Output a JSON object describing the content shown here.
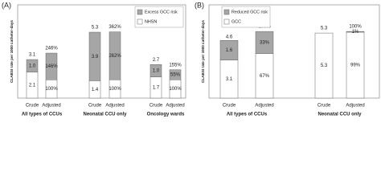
{
  "chart_data": [
    {
      "type": "bar",
      "stacked": true,
      "panel_label": "(A)",
      "ylabel": "CLABSI rate per 1000 catheter-days",
      "groups": [
        "All types of CCUs",
        "Neonatal CCU only",
        "Oncology wards"
      ],
      "categories": [
        "Crude",
        "Adjusted",
        "Crude",
        "Adjusted",
        "Crude",
        "Adjusted"
      ],
      "bar_axis": [
        "y",
        "y2",
        "y",
        "y2",
        "y",
        "y2"
      ],
      "series": [
        {
          "name": "NHSN",
          "color": "#ffffff",
          "values": [
            2.1,
            100,
            1.4,
            100,
            1.7,
            100
          ],
          "value_labels": [
            "2.1",
            "100%",
            "1.4",
            "100%",
            "1.7",
            "100%"
          ]
        },
        {
          "name": "Excess GCC risk",
          "color": "#a6a6a6",
          "values": [
            1.0,
            146,
            3.9,
            262,
            1.0,
            55
          ],
          "value_labels": [
            "1.0",
            "146%",
            "3.9",
            "262%",
            "1.0",
            "55%"
          ]
        }
      ],
      "totals": [
        3.1,
        246,
        5.3,
        362,
        2.7,
        155
      ],
      "total_labels": [
        "3.1",
        "246%",
        "5.3",
        "362%",
        "2.7",
        "155%"
      ],
      "ylim": [
        0,
        7.5
      ],
      "y2lim": [
        0,
        510
      ],
      "legend": "upper right"
    },
    {
      "type": "bar",
      "stacked": true,
      "panel_label": "(B)",
      "ylabel": "CLABSI rate per 1000 catheter-days",
      "groups": [
        "All types of CCUs",
        "Neonatal CCU only"
      ],
      "categories": [
        "Crude",
        "Adjusted",
        "Crude",
        "Adjusted"
      ],
      "bar_axis": [
        "y",
        "y2",
        "y",
        "y2"
      ],
      "series": [
        {
          "name": "GCC",
          "color": "#ffffff",
          "values": [
            3.1,
            67,
            5.3,
            99
          ],
          "value_labels": [
            "3.1",
            "67%",
            "5.3",
            "99%"
          ]
        },
        {
          "name": "Reduced GCC risk",
          "color": "#a6a6a6",
          "values": [
            1.6,
            33,
            null,
            1
          ],
          "value_labels": [
            "1.6",
            "33%",
            null,
            "1%"
          ]
        }
      ],
      "totals": [
        4.6,
        100,
        5.3,
        100
      ],
      "total_labels": [
        "4.6",
        "100%",
        "5.3",
        "100%"
      ],
      "ylim": [
        0,
        7.6
      ],
      "y2lim": [
        0,
        140
      ],
      "legend": "upper left"
    }
  ]
}
